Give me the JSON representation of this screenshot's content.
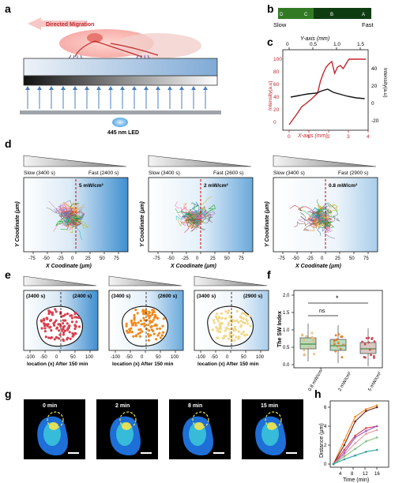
{
  "labels": {
    "a": "a",
    "b": "b",
    "c": "c",
    "d": "d",
    "e": "e",
    "f": "f",
    "g": "g",
    "h": "h"
  },
  "panel_a": {
    "arrow_label": "Directed Migration",
    "led_label": "445 nm LED"
  },
  "panel_b": {
    "slow": "Slow",
    "fast": "Fast",
    "letters": [
      "D",
      "C",
      "B",
      "A"
    ]
  },
  "panel_c": {
    "top_axis_label": "Y-axis (mm)",
    "top_ticks": [
      "0",
      "0.5",
      "1.0",
      "1.5"
    ],
    "bottom_axis_label": "X-axis (mm)",
    "bottom_ticks": [
      "0",
      "1",
      "2",
      "3",
      "4"
    ],
    "left_label": "Intensity(a.u)",
    "left_ticks": [
      "0",
      "20",
      "40",
      "60",
      "80",
      "100"
    ],
    "right_label": "Intensity(a.u)",
    "right_ticks": [
      "-20",
      "0",
      "20",
      "40"
    ],
    "colors": {
      "red": "#c0272d",
      "black": "#111111"
    }
  },
  "panel_d": {
    "plots": [
      {
        "slow": "Slow (3400 s)",
        "fast": "Fast (2400 s)",
        "power": "5 mW/cm²"
      },
      {
        "slow": "Slow (3400 s)",
        "fast": "Fast (2600 s)",
        "power": "2 mW/cm²"
      },
      {
        "slow": "Slow (3400 s)",
        "fast": "Fast (2900 s)",
        "power": "0.8 mW/cm²"
      }
    ],
    "ylabel": "Y Coodinate (μm)",
    "xlabel": "X Coodinate (μm)",
    "xticks": [
      "-75",
      "-50",
      "-25",
      "0",
      "25",
      "50",
      "75"
    ]
  },
  "panel_e": {
    "plots": [
      {
        "left": "(3400 s)",
        "right": "(2400 s)",
        "color": "#d9414f"
      },
      {
        "left": "(3400 s)",
        "right": "(2600 s)",
        "color": "#f08a1e"
      },
      {
        "left": "(3400 s)",
        "right": "(2900 s)",
        "color": "#f4d98a"
      }
    ],
    "xlabel": "location (x) After 150 min",
    "xticks": [
      "-100",
      "-50",
      "0",
      "50",
      "100"
    ]
  },
  "panel_f": {
    "ylabel": "The SW Index",
    "yticks": [
      "0.0",
      "0.5",
      "1.0",
      "1.5",
      "2.0"
    ],
    "categories": [
      "0.8 mW/cm²",
      "2 mW/cm²",
      "5 mW/cm²"
    ],
    "sig1": "ns",
    "sig2": "*"
  },
  "panel_g": {
    "times": [
      "0 min",
      "2 min",
      "8 min",
      "15 min"
    ]
  },
  "panel_h": {
    "ylabel": "Distance (μm)",
    "xlabel": "Time (min)",
    "xticks": [
      "4",
      "8",
      "12",
      "16"
    ],
    "yticks": [
      "0",
      "2",
      "4",
      "6"
    ]
  }
}
